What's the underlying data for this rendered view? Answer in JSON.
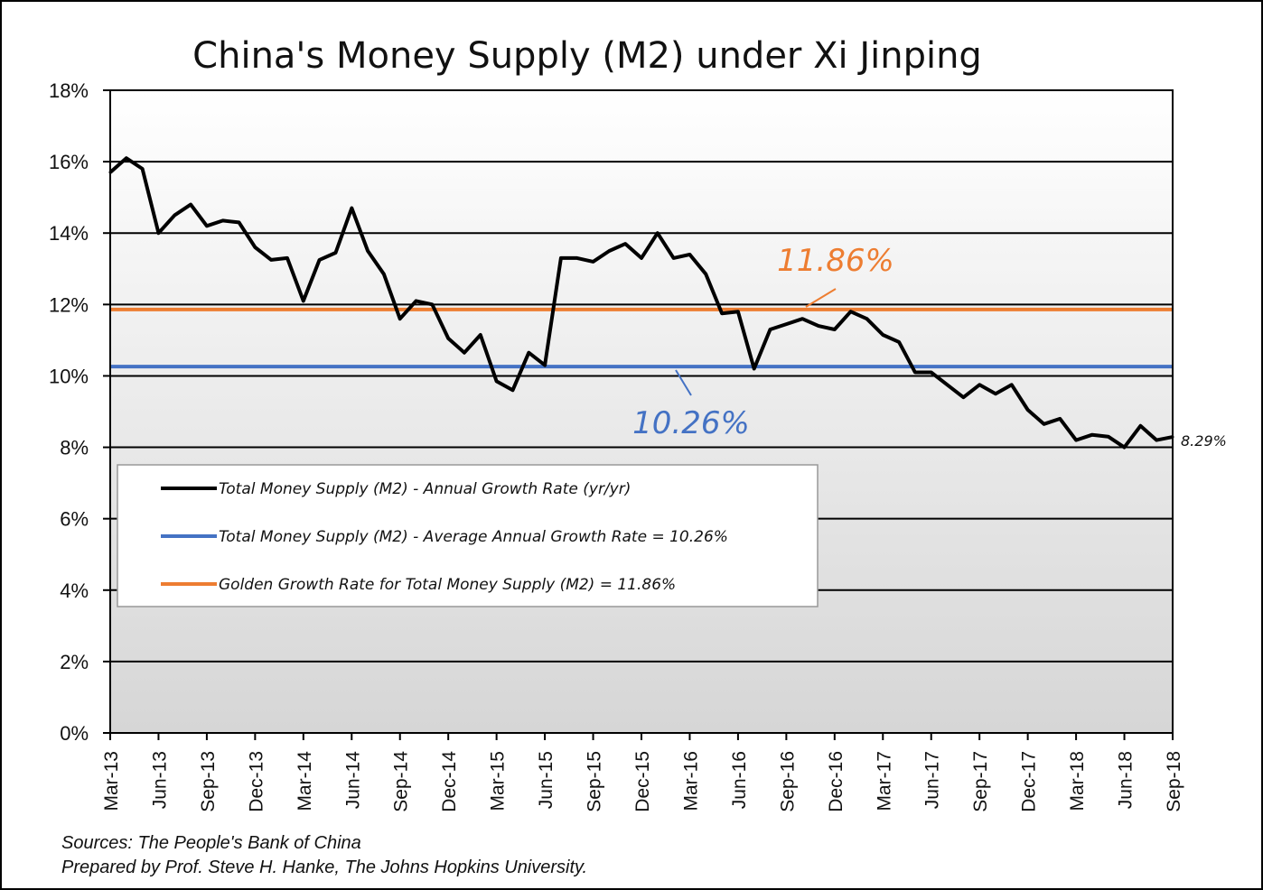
{
  "chart_data": {
    "type": "line",
    "title": "China's Money Supply (M2) under Xi Jinping",
    "xlabel": "",
    "ylabel": "",
    "ylim": [
      0,
      18
    ],
    "y_ticks": [
      "0%",
      "2%",
      "4%",
      "6%",
      "8%",
      "10%",
      "12%",
      "14%",
      "16%",
      "18%"
    ],
    "x_tick_labels": [
      "Mar-13",
      "Jun-13",
      "Sep-13",
      "Dec-13",
      "Mar-14",
      "Jun-14",
      "Sep-14",
      "Dec-14",
      "Mar-15",
      "Jun-15",
      "Sep-15",
      "Dec-15",
      "Mar-16",
      "Jun-16",
      "Sep-16",
      "Dec-16",
      "Mar-17",
      "Jun-17",
      "Sep-17",
      "Dec-17",
      "Mar-18",
      "Jun-18",
      "Sep-18"
    ],
    "grid": true,
    "legend_position": "middle-left",
    "series": [
      {
        "name": "Total Money Supply (M2) - Annual Growth Rate (yr/yr)",
        "color": "#000000",
        "x_start": "Mar-13",
        "frequency": "monthly",
        "values": [
          15.7,
          16.1,
          15.8,
          14.0,
          14.5,
          14.8,
          14.2,
          14.35,
          14.3,
          13.6,
          13.25,
          13.3,
          12.1,
          13.25,
          13.45,
          14.7,
          13.5,
          12.85,
          11.6,
          12.1,
          12.0,
          11.05,
          10.65,
          11.15,
          9.85,
          9.6,
          10.65,
          10.3,
          13.3,
          13.3,
          13.2,
          13.5,
          13.7,
          13.3,
          14.0,
          13.3,
          13.4,
          12.85,
          11.75,
          11.8,
          10.2,
          11.3,
          11.45,
          11.6,
          11.4,
          11.3,
          11.8,
          11.6,
          11.15,
          10.95,
          10.1,
          10.1,
          9.75,
          9.4,
          9.75,
          9.5,
          9.75,
          9.05,
          8.65,
          8.8,
          8.2,
          8.35,
          8.3,
          8.0,
          8.6,
          8.2,
          8.29
        ]
      },
      {
        "name": "Total Money Supply (M2) - Average Annual Growth Rate = 10.26%",
        "color": "#4472C4",
        "constant": 10.26
      },
      {
        "name": "Golden Growth Rate for Total Money Supply (M2) = 11.86%",
        "color": "#ED7D31",
        "constant": 11.86
      }
    ],
    "annotations": {
      "golden_label": "11.86%",
      "average_label": "10.26%",
      "last_value_label": "8.29%"
    },
    "legend": [
      "Total Money Supply (M2) - Annual Growth Rate (yr/yr)",
      "Total Money Supply (M2) - Average Annual Growth Rate = 10.26%",
      "Golden Growth Rate for Total Money Supply (M2) = 11.86%"
    ]
  },
  "sources": {
    "line1": "Sources: The People's Bank of China",
    "line2": "Prepared by Prof. Steve H. Hanke, The Johns Hopkins University."
  },
  "colors": {
    "average": "#4472C4",
    "golden": "#ED7D31",
    "series": "#000000"
  }
}
